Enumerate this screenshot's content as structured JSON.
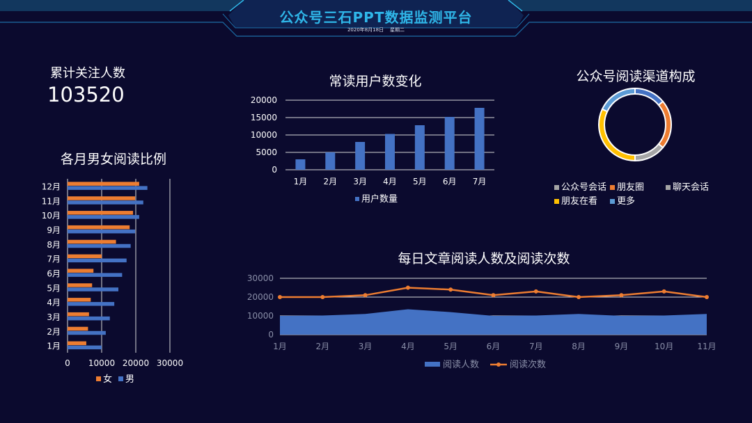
{
  "header": {
    "title": "公众号三石PPT数据监测平台",
    "date": "2020年8月18日",
    "weekday": "星期二"
  },
  "kpi": {
    "label": "累计关注人数",
    "value": "103520"
  },
  "chart_data": [
    {
      "id": "gender",
      "type": "bar",
      "orientation": "horizontal",
      "title": "各月男女阅读比例",
      "categories": [
        "1月",
        "2月",
        "3月",
        "4月",
        "5月",
        "6月",
        "7月",
        "8月",
        "9月",
        "10月",
        "11月",
        "12月"
      ],
      "series": [
        {
          "name": "女",
          "values": [
            5500,
            6000,
            6300,
            6800,
            7200,
            7600,
            10000,
            14200,
            18200,
            19200,
            19800,
            21000
          ]
        },
        {
          "name": "男",
          "values": [
            10000,
            11200,
            12400,
            13700,
            14900,
            16000,
            17300,
            18500,
            19800,
            21000,
            22200,
            23400
          ]
        }
      ],
      "xlim": [
        0,
        30000
      ],
      "xticks": [
        "0",
        "10000",
        "20000",
        "30000"
      ],
      "colors": [
        "#ed7d31",
        "#4472c4"
      ],
      "legend": "bottom"
    },
    {
      "id": "users",
      "type": "bar",
      "title": "常读用户数变化",
      "categories": [
        "1月",
        "2月",
        "3月",
        "4月",
        "5月",
        "6月",
        "7月"
      ],
      "series": [
        {
          "name": "用户数量",
          "values": [
            3000,
            5000,
            8000,
            10300,
            12800,
            15200,
            17800
          ]
        }
      ],
      "ylim": [
        0,
        20000
      ],
      "yticks": [
        "0",
        "5000",
        "10000",
        "15000",
        "20000"
      ],
      "colors": [
        "#4472c4"
      ],
      "legend": "bottom",
      "grid": true
    },
    {
      "id": "channels",
      "type": "pie",
      "subtype": "donut",
      "title": "公众号阅读渠道构成",
      "labels": [
        "公众号会话",
        "朋友圈",
        "聊天会话",
        "朋友在看",
        "更多"
      ],
      "series": [
        {
          "name": "",
          "values": [
            14,
            22,
            14,
            32,
            18
          ]
        }
      ],
      "legend_labels": [
        "公众号会话",
        "朋友圈",
        "聊天会话",
        "朋友在看",
        "更多"
      ],
      "slice_colors": [
        "#4472c4",
        "#ed7d31",
        "#a5a5a5",
        "#ffc000",
        "#5b9bd5"
      ],
      "legend_colors": [
        "#a5a5a5",
        "#ed7d31",
        "#a5a5a5",
        "#ffc000",
        "#5b9bd5"
      ],
      "legend": "bottom"
    },
    {
      "id": "daily",
      "type": "area",
      "title": "每日文章阅读人数及阅读次数",
      "categories": [
        "1月",
        "2月",
        "3月",
        "4月",
        "5月",
        "6月",
        "7月",
        "8月",
        "9月",
        "10月",
        "11月"
      ],
      "series": [
        {
          "name": "阅读人数",
          "type": "area",
          "values": [
            10000,
            10200,
            11000,
            13500,
            12000,
            10000,
            10200,
            11000,
            10000,
            10200,
            11000
          ]
        },
        {
          "name": "阅读次数",
          "type": "line",
          "values": [
            20000,
            20000,
            21000,
            25000,
            24000,
            21000,
            23000,
            20000,
            21000,
            23000,
            20000
          ]
        }
      ],
      "ylim": [
        0,
        30000
      ],
      "yticks": [
        "0",
        "10000",
        "20000",
        "30000"
      ],
      "colors": [
        "#4472c4",
        "#ed7d31"
      ],
      "legend": "bottom",
      "grid": true
    }
  ]
}
